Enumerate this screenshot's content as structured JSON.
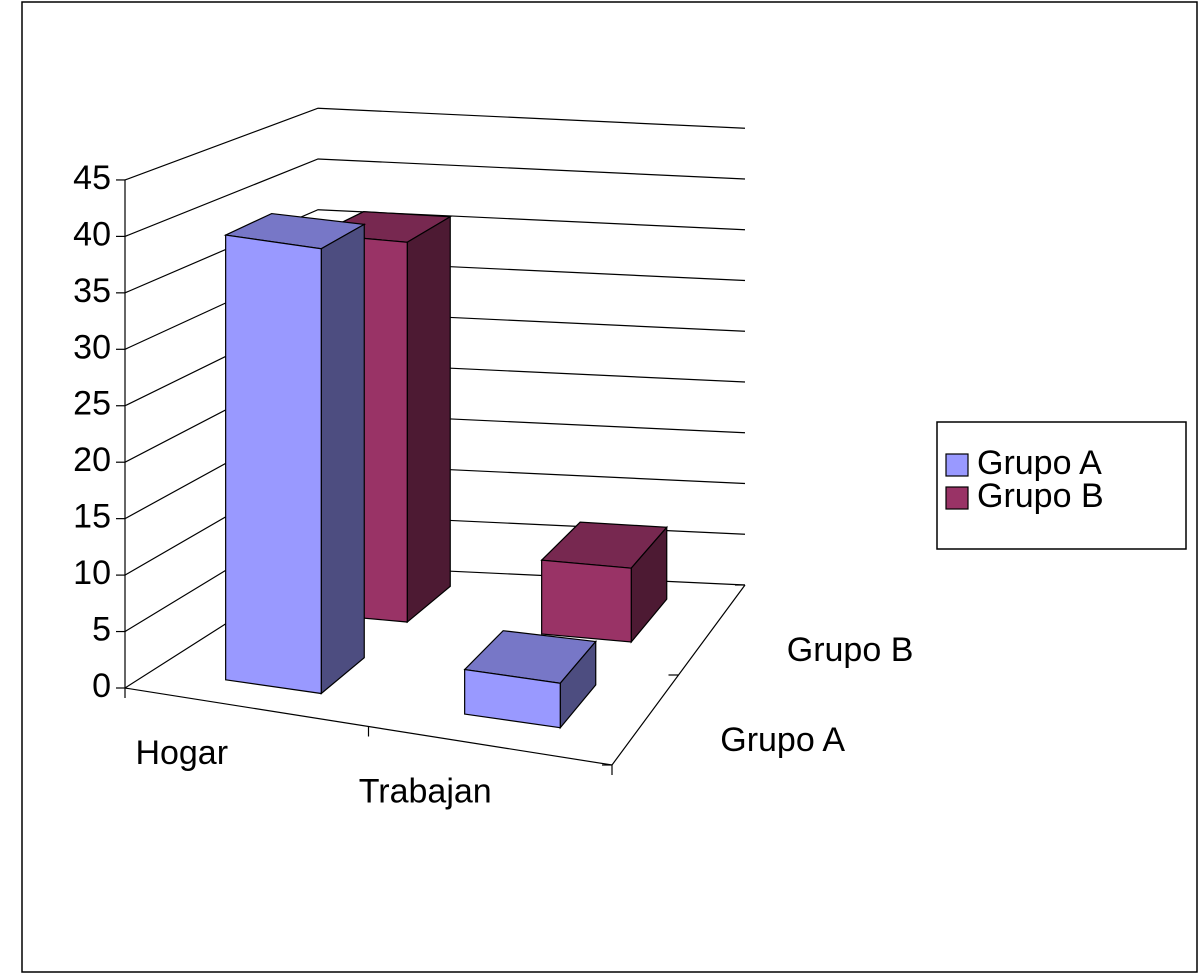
{
  "chart_data": {
    "type": "bar",
    "categories": [
      "Hogar",
      "Trabajan"
    ],
    "series": [
      {
        "name": "Grupo A",
        "color": "#9999ff",
        "values": [
          40,
          4
        ]
      },
      {
        "name": "Grupo B",
        "color": "#993366",
        "values": [
          36,
          7
        ]
      }
    ],
    "ylim": [
      0,
      45
    ],
    "yticks": [
      0,
      5,
      10,
      15,
      20,
      25,
      30,
      35,
      40,
      45
    ],
    "grid": true,
    "legend": "right"
  }
}
